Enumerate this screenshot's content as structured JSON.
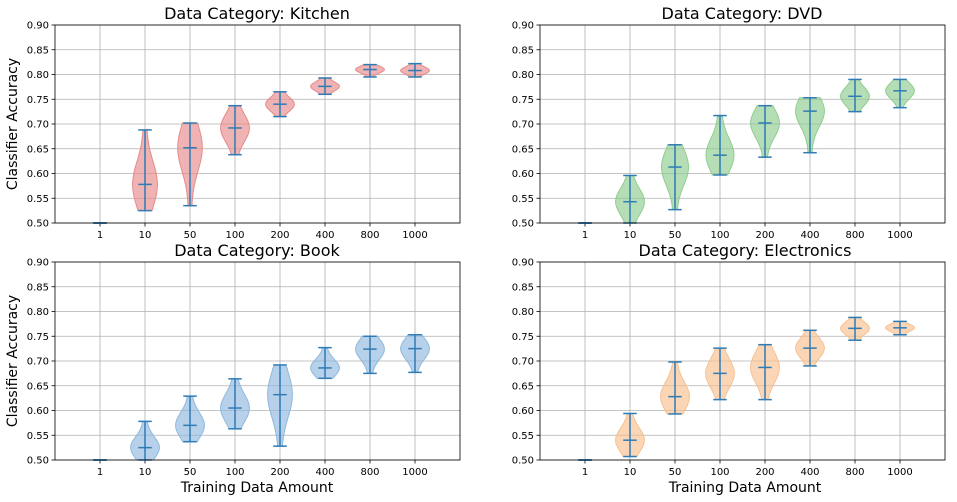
{
  "chart_data": [
    {
      "type": "violin",
      "title": "Data Category: Kitchen",
      "xlabel": "",
      "ylabel": "Classifier Accuracy",
      "ylim": [
        0.5,
        0.9
      ],
      "yticks": [
        "0.50",
        "0.55",
        "0.60",
        "0.65",
        "0.70",
        "0.75",
        "0.80",
        "0.85",
        "0.90"
      ],
      "grid": true,
      "color": "#e78a8a",
      "stats_color": "#2f7bb5",
      "categories": [
        "1",
        "10",
        "50",
        "100",
        "200",
        "400",
        "800",
        "1000"
      ],
      "violins": [
        {
          "min": 0.5,
          "median": 0.5,
          "max": 0.5
        },
        {
          "min": 0.525,
          "median": 0.578,
          "max": 0.688
        },
        {
          "min": 0.535,
          "median": 0.652,
          "max": 0.702
        },
        {
          "min": 0.638,
          "median": 0.692,
          "max": 0.737
        },
        {
          "min": 0.715,
          "median": 0.74,
          "max": 0.765
        },
        {
          "min": 0.76,
          "median": 0.776,
          "max": 0.793
        },
        {
          "min": 0.795,
          "median": 0.81,
          "max": 0.82
        },
        {
          "min": 0.795,
          "median": 0.808,
          "max": 0.822
        }
      ]
    },
    {
      "type": "violin",
      "title": "Data Category: DVD",
      "xlabel": "",
      "ylabel": "",
      "ylim": [
        0.5,
        0.9
      ],
      "yticks": [
        "0.50",
        "0.55",
        "0.60",
        "0.65",
        "0.70",
        "0.75",
        "0.80",
        "0.85",
        "0.90"
      ],
      "grid": true,
      "color": "#8fcc8f",
      "stats_color": "#2f7bb5",
      "categories": [
        "1",
        "10",
        "50",
        "100",
        "200",
        "400",
        "800",
        "1000"
      ],
      "violins": [
        {
          "min": 0.5,
          "median": 0.5,
          "max": 0.5
        },
        {
          "min": 0.5,
          "median": 0.543,
          "max": 0.596
        },
        {
          "min": 0.527,
          "median": 0.613,
          "max": 0.658
        },
        {
          "min": 0.597,
          "median": 0.637,
          "max": 0.717
        },
        {
          "min": 0.633,
          "median": 0.702,
          "max": 0.737
        },
        {
          "min": 0.642,
          "median": 0.726,
          "max": 0.753
        },
        {
          "min": 0.725,
          "median": 0.756,
          "max": 0.79
        },
        {
          "min": 0.733,
          "median": 0.767,
          "max": 0.79
        }
      ]
    },
    {
      "type": "violin",
      "title": "Data Category: Book",
      "xlabel": "Training Data Amount",
      "ylabel": "Classifier Accuracy",
      "ylim": [
        0.5,
        0.9
      ],
      "yticks": [
        "0.50",
        "0.55",
        "0.60",
        "0.65",
        "0.70",
        "0.75",
        "0.80",
        "0.85",
        "0.90"
      ],
      "grid": true,
      "color": "#8fb9dd",
      "stats_color": "#2f7bb5",
      "categories": [
        "1",
        "10",
        "50",
        "100",
        "200",
        "400",
        "800",
        "1000"
      ],
      "violins": [
        {
          "min": 0.5,
          "median": 0.5,
          "max": 0.5
        },
        {
          "min": 0.5,
          "median": 0.525,
          "max": 0.578
        },
        {
          "min": 0.537,
          "median": 0.57,
          "max": 0.629
        },
        {
          "min": 0.563,
          "median": 0.605,
          "max": 0.664
        },
        {
          "min": 0.528,
          "median": 0.632,
          "max": 0.692
        },
        {
          "min": 0.665,
          "median": 0.686,
          "max": 0.727
        },
        {
          "min": 0.675,
          "median": 0.724,
          "max": 0.75
        },
        {
          "min": 0.677,
          "median": 0.725,
          "max": 0.753
        }
      ]
    },
    {
      "type": "violin",
      "title": "Data Category: Electronics",
      "xlabel": "Training Data Amount",
      "ylabel": "",
      "ylim": [
        0.5,
        0.9
      ],
      "yticks": [
        "0.50",
        "0.55",
        "0.60",
        "0.65",
        "0.70",
        "0.75",
        "0.80",
        "0.85",
        "0.90"
      ],
      "grid": true,
      "color": "#f8c08f",
      "stats_color": "#2f7bb5",
      "categories": [
        "1",
        "10",
        "50",
        "100",
        "200",
        "400",
        "800",
        "1000"
      ],
      "violins": [
        {
          "min": 0.5,
          "median": 0.5,
          "max": 0.5
        },
        {
          "min": 0.507,
          "median": 0.54,
          "max": 0.594
        },
        {
          "min": 0.593,
          "median": 0.628,
          "max": 0.698
        },
        {
          "min": 0.622,
          "median": 0.675,
          "max": 0.726
        },
        {
          "min": 0.622,
          "median": 0.687,
          "max": 0.733
        },
        {
          "min": 0.69,
          "median": 0.726,
          "max": 0.762
        },
        {
          "min": 0.742,
          "median": 0.766,
          "max": 0.788
        },
        {
          "min": 0.753,
          "median": 0.767,
          "max": 0.78
        }
      ]
    }
  ]
}
